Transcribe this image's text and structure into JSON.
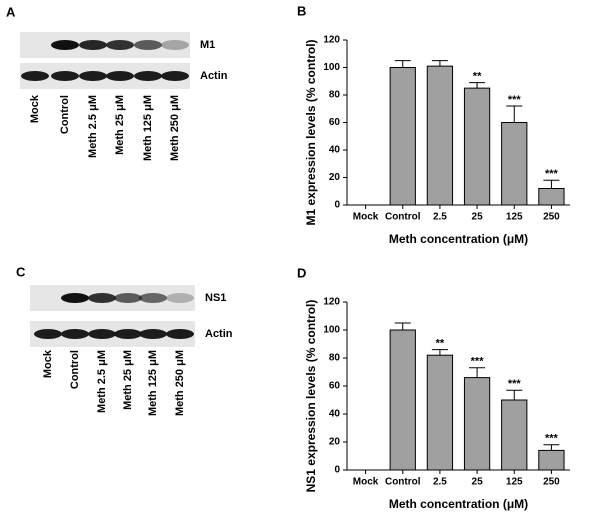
{
  "blots": [
    {
      "panel": "A",
      "bands": [
        "M1",
        "Actin"
      ],
      "lanes": [
        "Mock",
        "Control",
        "Meth 2.5 μM",
        "Meth 25 μM",
        "Meth 125 μM",
        "Meth 250 μM"
      ]
    },
    {
      "panel": "C",
      "bands": [
        "NS1",
        "Actin"
      ],
      "lanes": [
        "Mock",
        "Control",
        "Meth 2.5 μM",
        "Meth 25 μM",
        "Meth 125 μM",
        "Meth 250 μM"
      ]
    }
  ],
  "chart_data": [
    {
      "type": "bar",
      "panel": "B",
      "xlabel": "Meth concentration (μM)",
      "ylabel": "M1 expression levels (% control)",
      "categories": [
        "Mock",
        "Control",
        "2.5",
        "25",
        "125",
        "250"
      ],
      "values": [
        null,
        100,
        101,
        85,
        60,
        12
      ],
      "errors": [
        null,
        5,
        4,
        4,
        12,
        6
      ],
      "significance": [
        null,
        null,
        null,
        "**",
        "***",
        "***"
      ],
      "color": "#a0a0a0",
      "ylim": [
        0,
        120
      ],
      "yticks": [
        0,
        20,
        40,
        60,
        80,
        100,
        120
      ]
    },
    {
      "type": "bar",
      "panel": "D",
      "xlabel": "Meth concentration (μM)",
      "ylabel": "NS1 expression levels (% control)",
      "categories": [
        "Mock",
        "Control",
        "2.5",
        "25",
        "125",
        "250"
      ],
      "values": [
        null,
        100,
        82,
        66,
        50,
        14
      ],
      "errors": [
        null,
        5,
        4,
        7,
        7,
        4
      ],
      "significance": [
        null,
        null,
        "**",
        "***",
        "***",
        "***"
      ],
      "color": "#a0a0a0",
      "ylim": [
        0,
        120
      ],
      "yticks": [
        0,
        20,
        40,
        60,
        80,
        100,
        120
      ]
    }
  ]
}
